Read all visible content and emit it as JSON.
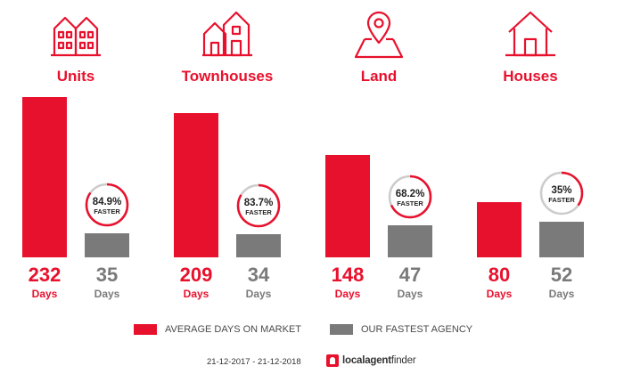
{
  "colors": {
    "market": "#e8112d",
    "agency": "#7a7a7a",
    "ring_bg": "#cccccc"
  },
  "chart_data": {
    "type": "bar",
    "categories": [
      "Units",
      "Townhouses",
      "Land",
      "Houses"
    ],
    "series": [
      {
        "name": "AVERAGE DAYS ON MARKET",
        "values": [
          232,
          209,
          148,
          80
        ]
      },
      {
        "name": "OUR FASTEST AGENCY",
        "values": [
          35,
          34,
          47,
          52
        ]
      }
    ],
    "faster_pct": [
      84.9,
      83.7,
      68.2,
      35
    ],
    "faster_labels": [
      "84.9%",
      "83.7%",
      "68.2%",
      "35%"
    ],
    "faster_word": "FASTER",
    "unit_label": "Days",
    "icons": [
      "apartment-building-icon",
      "townhouse-icon",
      "location-pin-land-icon",
      "house-icon"
    ],
    "ylim": [
      0,
      232
    ],
    "legend_position": "bottom"
  },
  "footer": {
    "date_range": "21-12-2017 - 21-12-2018",
    "brand_bold": "localagent",
    "brand_rest": "finder"
  }
}
